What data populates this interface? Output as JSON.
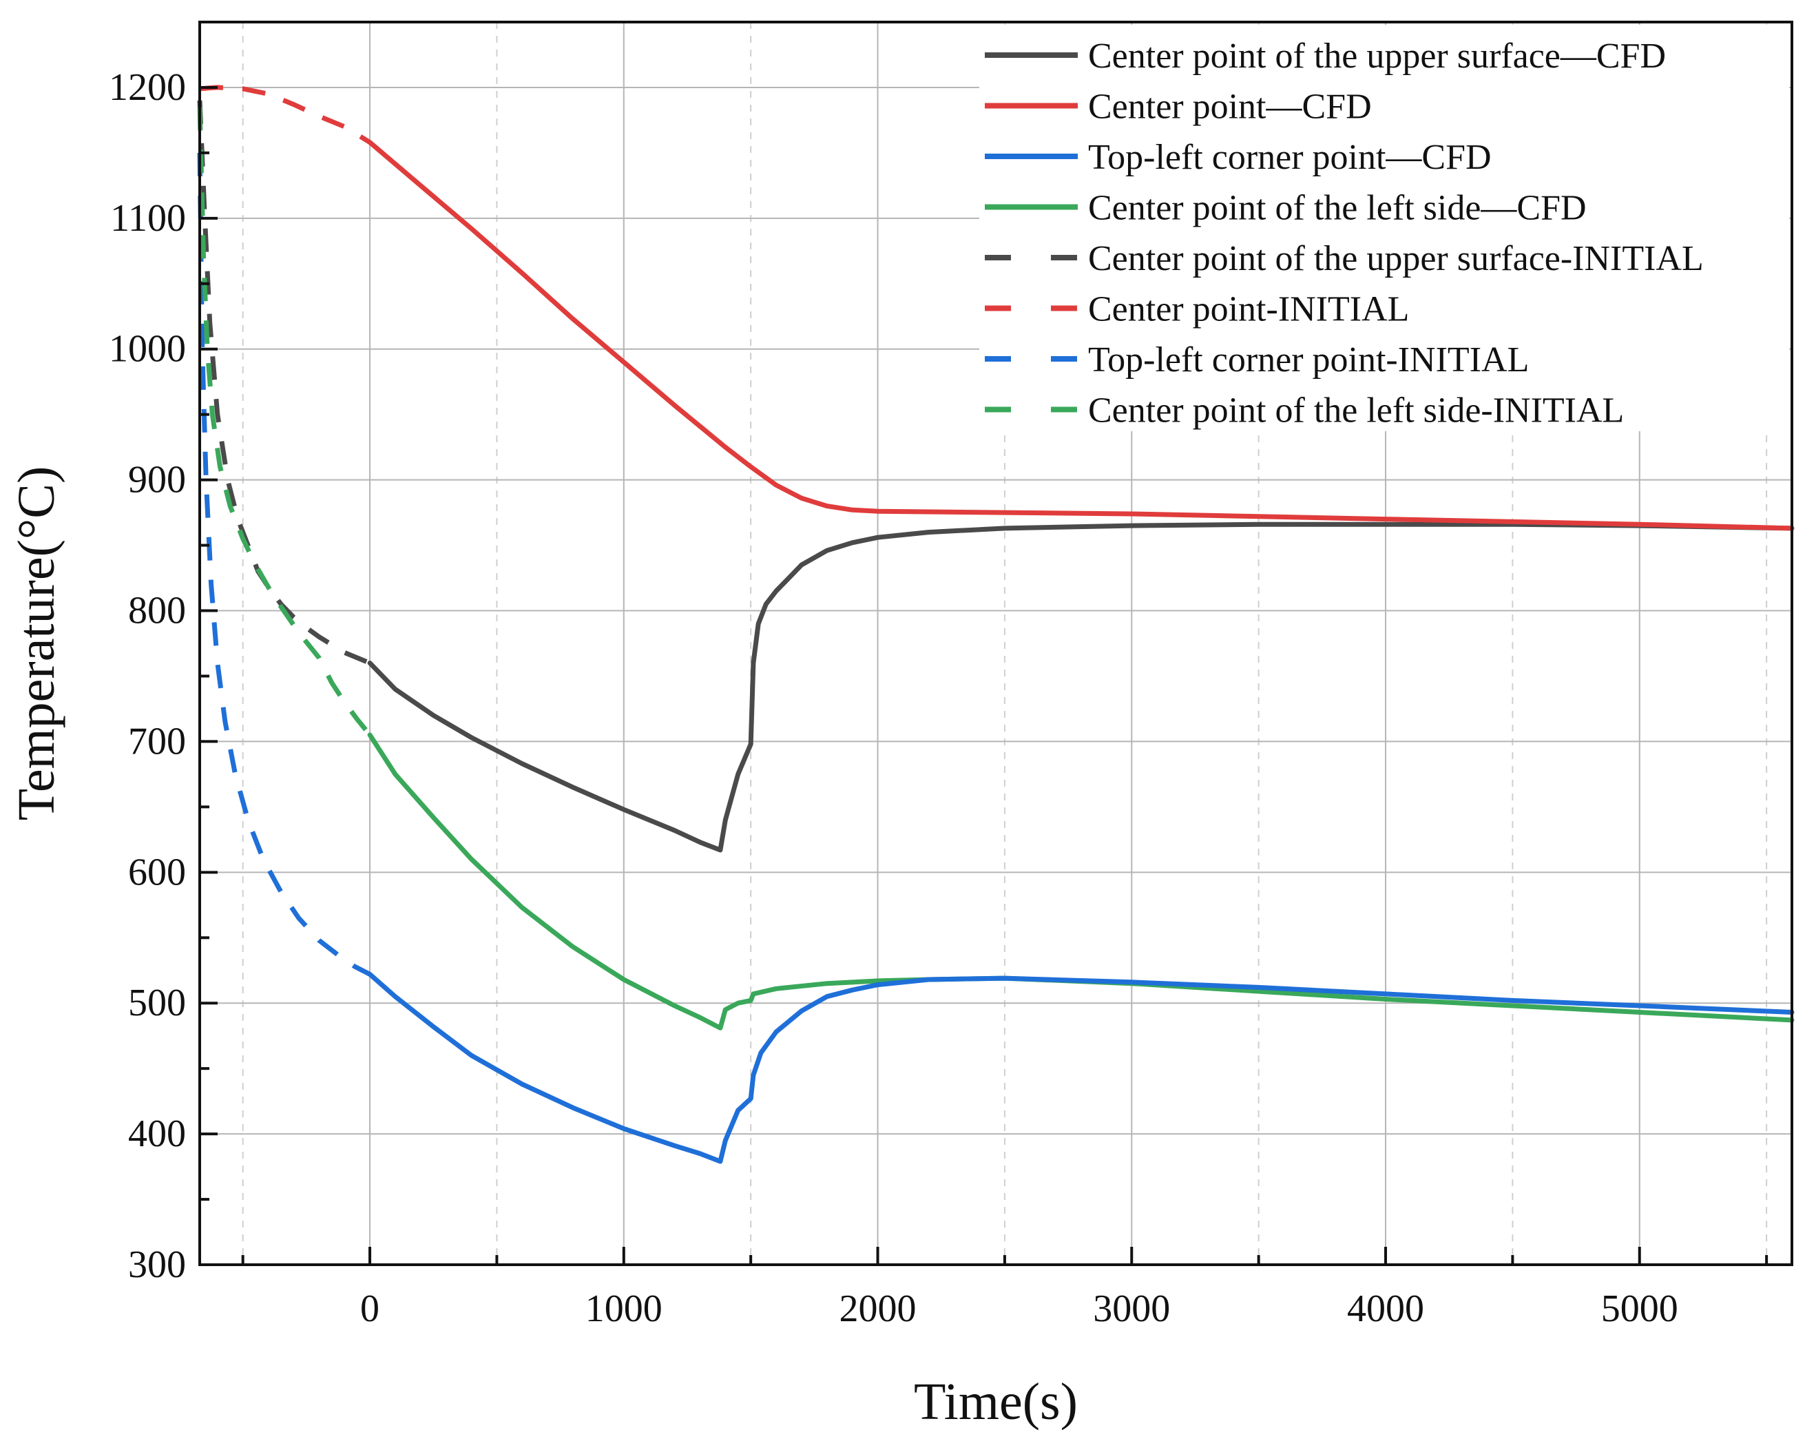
{
  "chart_data": {
    "type": "line",
    "title": "",
    "xlabel": "Time(s)",
    "ylabel": "Temperature(°C)",
    "xlim": [
      -670,
      5600
    ],
    "ylim": [
      300,
      1250
    ],
    "xticks": [
      0,
      1000,
      2000,
      3000,
      4000,
      5000
    ],
    "xtick_labels": [
      "0",
      "1000",
      "2000",
      "3000",
      "4000",
      "5000"
    ],
    "yticks": [
      300,
      400,
      500,
      600,
      700,
      800,
      900,
      1000,
      1100,
      1200
    ],
    "ytick_labels": [
      "300",
      "400",
      "500",
      "600",
      "700",
      "800",
      "900",
      "1000",
      "1100",
      "1200"
    ],
    "grid": true,
    "legend_position": "top-right",
    "series": [
      {
        "name": "Center point of the upper surface—CFD",
        "color": "#4a4a4a",
        "style": "solid",
        "x": [
          0,
          100,
          250,
          400,
          600,
          800,
          1000,
          1200,
          1300,
          1380,
          1400,
          1450,
          1500,
          1510,
          1530,
          1560,
          1600,
          1650,
          1700,
          1800,
          1900,
          2000,
          2200,
          2500,
          3000,
          3500,
          4000,
          4500,
          5000,
          5600
        ],
        "y": [
          760,
          740,
          720,
          703,
          683,
          665,
          648,
          632,
          623,
          617,
          640,
          675,
          698,
          760,
          790,
          805,
          815,
          825,
          835,
          846,
          852,
          856,
          860,
          863,
          865,
          866,
          866,
          866,
          865,
          863
        ]
      },
      {
        "name": "Center point—CFD",
        "color": "#e03c3c",
        "style": "solid",
        "x": [
          0,
          200,
          400,
          600,
          800,
          1000,
          1200,
          1400,
          1500,
          1600,
          1700,
          1800,
          1900,
          2000,
          2500,
          3000,
          3500,
          4000,
          4500,
          5000,
          5600
        ],
        "y": [
          1158,
          1125,
          1092,
          1058,
          1023,
          990,
          957,
          925,
          910,
          896,
          886,
          880,
          877,
          876,
          875,
          874,
          872,
          870,
          868,
          866,
          863
        ]
      },
      {
        "name": "Top-left corner point—CFD",
        "color": "#1f6fd8",
        "style": "solid",
        "x": [
          0,
          100,
          250,
          400,
          600,
          800,
          1000,
          1200,
          1300,
          1380,
          1400,
          1450,
          1500,
          1510,
          1540,
          1600,
          1700,
          1800,
          1900,
          2000,
          2200,
          2500,
          3000,
          3500,
          4000,
          4500,
          5000,
          5600
        ],
        "y": [
          522,
          505,
          482,
          460,
          438,
          420,
          404,
          391,
          385,
          379,
          395,
          418,
          427,
          445,
          462,
          478,
          494,
          505,
          510,
          514,
          518,
          519,
          516,
          512,
          507,
          502,
          498,
          493
        ]
      },
      {
        "name": "Center point of the left side—CFD",
        "color": "#3aa85a",
        "style": "solid",
        "x": [
          0,
          100,
          250,
          400,
          600,
          800,
          1000,
          1200,
          1300,
          1380,
          1400,
          1450,
          1500,
          1510,
          1600,
          1800,
          2000,
          2200,
          2500,
          3000,
          3500,
          4000,
          4500,
          5000,
          5600
        ],
        "y": [
          705,
          675,
          642,
          610,
          573,
          543,
          518,
          498,
          489,
          481,
          495,
          500,
          502,
          507,
          511,
          515,
          517,
          518,
          519,
          515,
          509,
          503,
          498,
          493,
          487
        ]
      },
      {
        "name": "Center point of the upper surface-INITIAL",
        "color": "#4a4a4a",
        "style": "dashed",
        "x": [
          -670,
          -650,
          -630,
          -600,
          -560,
          -520,
          -480,
          -440,
          -400,
          -350,
          -300,
          -250,
          -200,
          -150,
          -100,
          -50,
          0
        ],
        "y": [
          1190,
          1100,
          1020,
          950,
          900,
          870,
          850,
          830,
          818,
          805,
          795,
          787,
          780,
          774,
          768,
          764,
          760
        ]
      },
      {
        "name": "Center point-INITIAL",
        "color": "#e03c3c",
        "style": "dashed",
        "x": [
          -670,
          -600,
          -500,
          -400,
          -300,
          -200,
          -100,
          0
        ],
        "y": [
          1199,
          1200,
          1199,
          1195,
          1187,
          1178,
          1170,
          1158
        ]
      },
      {
        "name": "Top-left corner point-INITIAL",
        "color": "#1f6fd8",
        "style": "dashed",
        "x": [
          -670,
          -660,
          -645,
          -625,
          -600,
          -570,
          -530,
          -480,
          -420,
          -350,
          -280,
          -200,
          -120,
          -60,
          0
        ],
        "y": [
          1150,
          1000,
          900,
          820,
          760,
          715,
          675,
          640,
          610,
          585,
          565,
          548,
          536,
          528,
          522
        ]
      },
      {
        "name": "Center point of the left side-INITIAL",
        "color": "#3aa85a",
        "style": "dashed",
        "x": [
          -670,
          -655,
          -640,
          -620,
          -590,
          -550,
          -500,
          -450,
          -400,
          -350,
          -300,
          -250,
          -200,
          -150,
          -100,
          -50,
          0
        ],
        "y": [
          1185,
          1070,
          1000,
          950,
          910,
          880,
          855,
          835,
          818,
          803,
          789,
          776,
          764,
          745,
          730,
          717,
          705
        ]
      }
    ]
  }
}
